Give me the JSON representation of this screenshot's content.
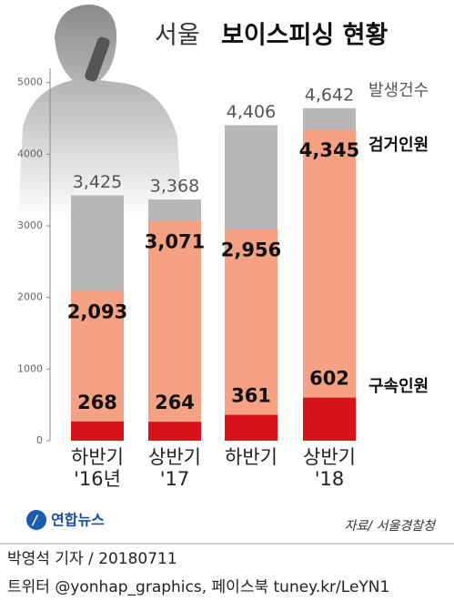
{
  "chart_data": {
    "type": "overlap_bar",
    "title": [
      "서울",
      "보이스피싱 현황"
    ],
    "categories": [
      "하반기\n'16년",
      "상반기\n'17",
      "하반기",
      "상반기\n'18"
    ],
    "series": [
      {
        "name": "발생건수",
        "color": "#b7b7b7",
        "values": [
          3425,
          3368,
          4406,
          4642
        ],
        "value_labels": [
          "3,425",
          "3,368",
          "4,406",
          "4,642"
        ]
      },
      {
        "name": "검거인원",
        "color": "#f4a283",
        "values": [
          2093,
          3071,
          2956,
          4345
        ],
        "value_labels": [
          "2,093",
          "3,071",
          "2,956",
          "4,345"
        ]
      },
      {
        "name": "구속인원",
        "color": "#d7141a",
        "values": [
          268,
          264,
          361,
          602
        ]
      }
    ],
    "ylim": [
      0,
      5200
    ],
    "yticks": [
      0,
      1000,
      2000,
      3000,
      4000,
      5000
    ],
    "source": "자료/ 서울경찰청",
    "logo": "연합뉴스",
    "byline": "박영석 기자 / 20180711",
    "sns": "트위터 @yonhap_graphics, 페이스북 tuney.kr/LeYN1"
  }
}
